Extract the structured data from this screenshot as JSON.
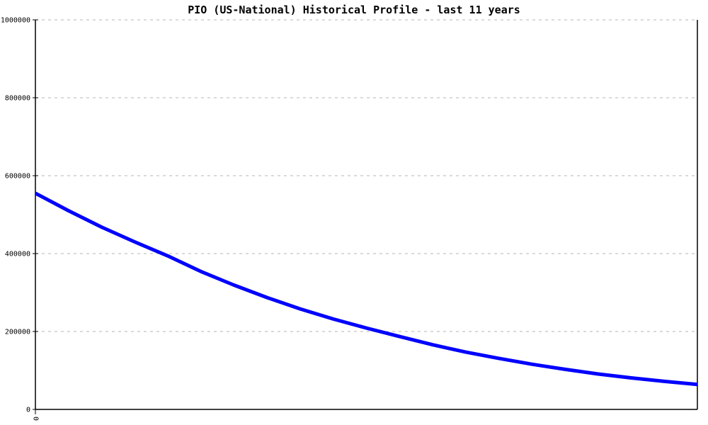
{
  "colors": {
    "background": "#ffffff",
    "line": "#0000ff",
    "grid": "#b4b4b4",
    "axis": "#000000",
    "text": "#000000"
  },
  "chart_data": {
    "type": "line",
    "title": "PIO (US-National) Historical Profile - last 11 years",
    "xlabel": "",
    "ylabel": "",
    "ylim": [
      0,
      1000000
    ],
    "y_ticks": [
      0,
      200000,
      400000,
      600000,
      800000,
      1000000
    ],
    "y_tick_labels": [
      "0",
      "200000",
      "400000",
      "600000",
      "800000",
      "1000000"
    ],
    "x_tick_labels": [
      "0"
    ],
    "x_tick_positions": [
      0
    ],
    "x_tick_rotated": true,
    "grid": "horizontal-dashed",
    "legend": false,
    "series": [
      {
        "name": "historical-profile",
        "color": "#0000ff",
        "x_fraction": [
          0.0,
          0.05,
          0.1,
          0.15,
          0.2,
          0.25,
          0.3,
          0.35,
          0.4,
          0.45,
          0.5,
          0.55,
          0.6,
          0.65,
          0.7,
          0.75,
          0.8,
          0.85,
          0.9,
          0.95,
          1.0
        ],
        "values": [
          555000,
          510000,
          468000,
          430000,
          394000,
          354000,
          319000,
          287000,
          258000,
          232000,
          209000,
          187000,
          166000,
          147000,
          131000,
          116000,
          103000,
          91000,
          81000,
          72000,
          64000
        ]
      }
    ]
  }
}
